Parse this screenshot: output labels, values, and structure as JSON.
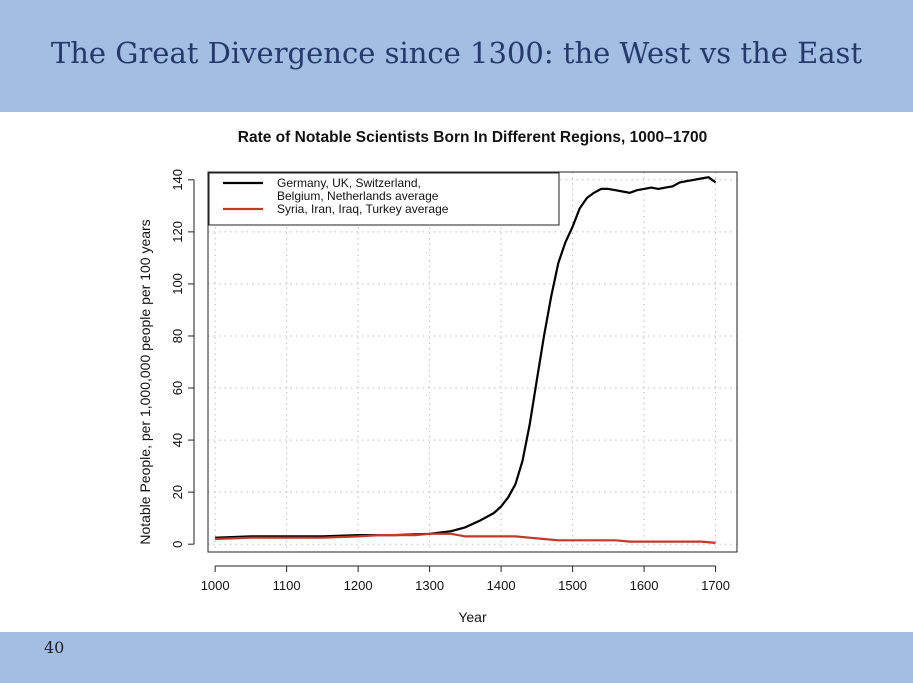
{
  "slide": {
    "title": "The Great Divergence since 1300: the West vs the East",
    "page_number": "40",
    "header_color": "#a3bde3"
  },
  "chart_data": {
    "type": "line",
    "title": "Rate of Notable Scientists Born In Different Regions, 1000–1700",
    "xlabel": "Year",
    "ylabel": "Notable People, per 1,000,000 people per 100 years",
    "xlim": [
      990,
      1730
    ],
    "ylim": [
      -3,
      143
    ],
    "x_ticks": [
      "1000",
      "1100",
      "1200",
      "1300",
      "1400",
      "1500",
      "1600",
      "1700"
    ],
    "y_ticks": [
      "0",
      "20",
      "40",
      "60",
      "80",
      "100",
      "120",
      "140"
    ],
    "grid": true,
    "legend_position": "top-left",
    "series": [
      {
        "name": "Germany, UK, Switzerland, Belgium, Netherlands average",
        "legend_lines": [
          "Germany, UK, Switzerland,",
          "Belgium, Netherlands average"
        ],
        "color": "#000000",
        "x": [
          1000,
          1050,
          1100,
          1150,
          1200,
          1250,
          1300,
          1330,
          1350,
          1370,
          1390,
          1400,
          1410,
          1420,
          1430,
          1440,
          1450,
          1460,
          1470,
          1480,
          1490,
          1500,
          1510,
          1520,
          1530,
          1540,
          1550,
          1560,
          1570,
          1580,
          1590,
          1600,
          1610,
          1620,
          1630,
          1640,
          1650,
          1660,
          1670,
          1680,
          1690,
          1700
        ],
        "y": [
          2.5,
          3,
          3,
          3,
          3.5,
          3.5,
          4,
          5,
          6.5,
          9,
          12,
          14.5,
          18,
          23,
          32,
          46,
          63,
          80,
          95,
          108,
          116,
          122,
          129,
          133,
          135,
          136.5,
          136.5,
          136,
          135.5,
          135,
          136,
          136.5,
          137,
          136.5,
          137,
          137.5,
          139,
          139.5,
          140,
          140.5,
          141,
          139
        ]
      },
      {
        "name": "Syria, Iran, Iraq, Turkey average",
        "legend_lines": [
          "Syria, Iran, Iraq, Turkey average"
        ],
        "color": "#c0392b",
        "x": [
          1000,
          1050,
          1100,
          1150,
          1200,
          1230,
          1250,
          1280,
          1300,
          1330,
          1350,
          1380,
          1400,
          1420,
          1440,
          1460,
          1480,
          1500,
          1520,
          1540,
          1560,
          1580,
          1600,
          1620,
          1640,
          1660,
          1680,
          1700
        ],
        "y": [
          2,
          2.5,
          2.5,
          2.5,
          3,
          3.5,
          3.5,
          3.5,
          4,
          4,
          3,
          3,
          3,
          3,
          2.5,
          2,
          1.5,
          1.5,
          1.5,
          1.5,
          1.5,
          1,
          1,
          1,
          1,
          1,
          1,
          0.5
        ]
      }
    ]
  }
}
